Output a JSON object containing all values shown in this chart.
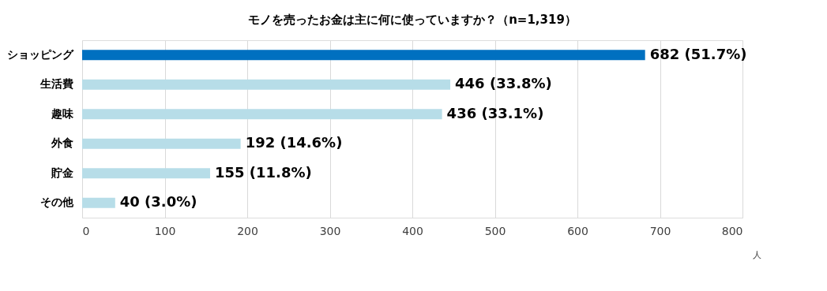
{
  "chart_data": {
    "type": "bar",
    "orientation": "horizontal",
    "title": "モノを売ったお金は主に何に使っていますか？（n=1,319）",
    "xlabel": "人",
    "categories": [
      "ショッピング",
      "生活費",
      "趣味",
      "外食",
      "貯金",
      "その他"
    ],
    "values": [
      682,
      446,
      436,
      192,
      155,
      40
    ],
    "colors": [
      "#0070c0",
      "#b7dde8",
      "#b7dde8",
      "#b7dde8",
      "#b7dde8",
      "#b7dde8"
    ],
    "value_labels": [
      "682 (51.7%)",
      "446 (33.8%)",
      "436 (33.1%)",
      "192 (14.6%)",
      "155 (11.8%)",
      "40 (3.0%)"
    ],
    "xlim": [
      0,
      800
    ],
    "xticks": [
      0,
      100,
      200,
      300,
      400,
      500,
      600,
      700,
      800
    ],
    "grid": "x"
  }
}
